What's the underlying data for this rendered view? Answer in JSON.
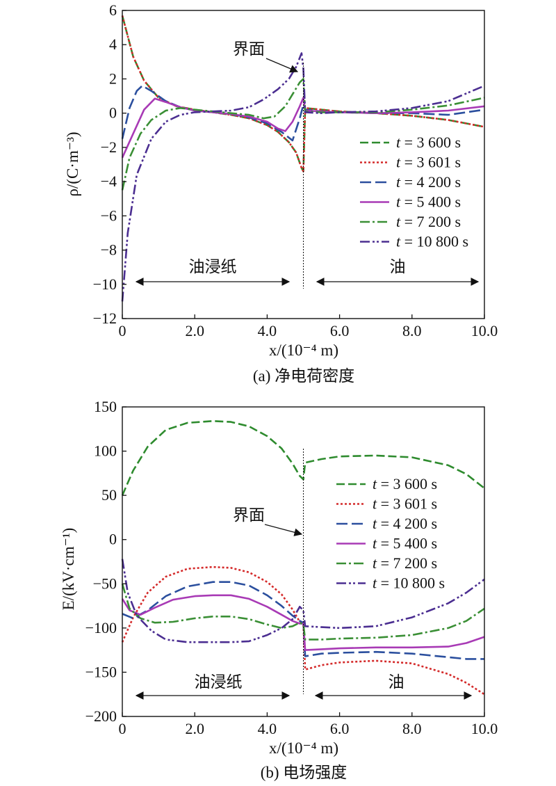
{
  "figure": {
    "caption_a": "(a) 净电荷密度",
    "caption_b": "(b) 电场强度"
  },
  "chart_data": [
    {
      "type": "line",
      "ylabel": "ρ/(C·m⁻³)",
      "xlabel": "x/(10⁻⁴ m)",
      "xlim": [
        0,
        10
      ],
      "ylim": [
        -12,
        6
      ],
      "x_ticks": [
        0,
        2,
        4,
        6,
        8,
        10
      ],
      "x_tick_labels": [
        "0",
        "2.0",
        "4.0",
        "6.0",
        "8.0",
        "10.0"
      ],
      "y_ticks": [
        -12,
        -10,
        -8,
        -6,
        -4,
        -2,
        0,
        2,
        4,
        6
      ],
      "y_tick_labels": [
        "−12",
        "−10",
        "−8",
        "−6",
        "−4",
        "−2",
        "0",
        "2",
        "4",
        "6"
      ],
      "grid": false,
      "legend_position": "right",
      "interface_x": 5.0,
      "annotations": {
        "interface": "界面",
        "region_paper": "油浸纸",
        "region_oil": "油"
      },
      "series": [
        {
          "name": "t = 3 600 s",
          "color": "#2e8b2e",
          "dash": "12,5",
          "x": [
            0,
            0.3,
            0.6,
            1.0,
            1.5,
            2.0,
            2.5,
            3.0,
            3.5,
            4.0,
            4.3,
            4.6,
            4.8,
            4.95,
            5.0,
            5.05,
            5.5,
            6.0,
            7.0,
            8.0,
            9.0,
            10.0
          ],
          "y": [
            5.7,
            3.3,
            1.9,
            0.9,
            0.4,
            0.2,
            0.05,
            -0.1,
            -0.3,
            -0.7,
            -1.1,
            -1.7,
            -2.3,
            -3.2,
            -3.4,
            0.3,
            0.2,
            0.1,
            0.0,
            -0.15,
            -0.4,
            -0.8
          ]
        },
        {
          "name": "t = 3 601 s",
          "color": "#d42a2a",
          "dash": "3,3",
          "x": [
            0,
            0.3,
            0.6,
            1.0,
            1.5,
            2.0,
            2.5,
            3.0,
            3.5,
            4.0,
            4.3,
            4.6,
            4.8,
            4.95,
            5.0,
            5.05,
            5.5,
            6.0,
            7.0,
            8.0,
            9.0,
            10.0
          ],
          "y": [
            5.7,
            3.3,
            1.9,
            0.9,
            0.4,
            0.2,
            0.05,
            -0.1,
            -0.3,
            -0.7,
            -1.1,
            -1.7,
            -2.3,
            -3.2,
            -3.4,
            0.3,
            0.2,
            0.1,
            0.0,
            -0.15,
            -0.4,
            -0.8
          ]
        },
        {
          "name": "t = 4 200 s",
          "color": "#2b4f9e",
          "dash": "16,6",
          "x": [
            0,
            0.2,
            0.4,
            0.55,
            0.8,
            1.2,
            1.6,
            2.0,
            2.5,
            3.0,
            3.5,
            4.0,
            4.4,
            4.7,
            4.9,
            5.0,
            5.05,
            5.5,
            6.0,
            7.0,
            8.0,
            9.0,
            10.0
          ],
          "y": [
            -1.5,
            0.3,
            1.3,
            1.6,
            1.3,
            0.7,
            0.35,
            0.15,
            0.05,
            -0.05,
            -0.25,
            -0.6,
            -1.1,
            -1.6,
            -0.3,
            0.5,
            0.2,
            0.1,
            0.05,
            0.0,
            0.0,
            -0.1,
            0.2
          ]
        },
        {
          "name": "t = 5 400 s",
          "color": "#a83ab5",
          "dash": "",
          "x": [
            0,
            0.3,
            0.6,
            0.9,
            1.2,
            1.6,
            2.0,
            2.5,
            3.0,
            3.5,
            4.0,
            4.3,
            4.5,
            4.7,
            4.9,
            5.0,
            5.05,
            5.5,
            6.0,
            7.0,
            8.0,
            9.0,
            10.0
          ],
          "y": [
            -2.6,
            -1.2,
            0.2,
            0.85,
            0.65,
            0.35,
            0.15,
            0.05,
            -0.05,
            -0.2,
            -0.5,
            -0.9,
            -1.05,
            -0.5,
            0.4,
            0.9,
            0.15,
            0.1,
            0.05,
            0.0,
            0.05,
            0.15,
            0.4
          ]
        },
        {
          "name": "t = 7 200 s",
          "color": "#3a8f35",
          "dash": "14,4,3,4",
          "x": [
            0,
            0.2,
            0.5,
            0.8,
            1.2,
            1.6,
            2.0,
            2.5,
            3.0,
            3.5,
            3.9,
            4.2,
            4.5,
            4.7,
            4.9,
            5.0,
            5.05,
            5.5,
            6.0,
            7.0,
            8.0,
            9.0,
            10.0
          ],
          "y": [
            -4.5,
            -2.6,
            -1.2,
            -0.4,
            0.15,
            0.3,
            0.2,
            0.1,
            0.0,
            -0.1,
            -0.3,
            -0.2,
            0.4,
            1.1,
            1.8,
            2.0,
            0.1,
            0.05,
            0.05,
            0.05,
            0.2,
            0.45,
            0.9
          ]
        },
        {
          "name": "t = 10 800 s",
          "color": "#4b2e91",
          "dash": "14,4,3,3,3,4",
          "x": [
            0,
            0.15,
            0.4,
            0.8,
            1.2,
            1.6,
            2.0,
            2.5,
            3.0,
            3.5,
            3.9,
            4.3,
            4.6,
            4.8,
            4.95,
            5.0,
            5.05,
            5.5,
            6.0,
            7.0,
            8.0,
            9.0,
            10.0
          ],
          "y": [
            -11,
            -7.0,
            -3.6,
            -1.5,
            -0.5,
            -0.1,
            0.05,
            0.1,
            0.15,
            0.35,
            0.8,
            1.4,
            2.0,
            2.7,
            3.5,
            2.6,
            0.05,
            0.0,
            0.05,
            0.1,
            0.3,
            0.7,
            1.6
          ]
        }
      ]
    },
    {
      "type": "line",
      "ylabel": "E/(kV·cm⁻¹)",
      "xlabel": "x/(10⁻⁴ m)",
      "xlim": [
        0,
        10
      ],
      "ylim": [
        -200,
        150
      ],
      "x_ticks": [
        0,
        2,
        4,
        6,
        8,
        10
      ],
      "x_tick_labels": [
        "0",
        "2.0",
        "4.0",
        "6.0",
        "8.0",
        "10.0"
      ],
      "y_ticks": [
        -200,
        -150,
        -100,
        -50,
        0,
        50,
        100,
        150
      ],
      "y_tick_labels": [
        "−200",
        "−150",
        "−100",
        "−50",
        "0",
        "50",
        "100",
        "150"
      ],
      "grid": false,
      "legend_position": "top-right",
      "interface_x": 5.0,
      "annotations": {
        "interface": "界面",
        "region_paper": "油浸纸",
        "region_oil": "油"
      },
      "series": [
        {
          "name": "t = 3 600 s",
          "color": "#2e8b2e",
          "dash": "12,5",
          "x": [
            0,
            0.3,
            0.7,
            1.2,
            1.8,
            2.5,
            3.0,
            3.5,
            4.0,
            4.4,
            4.7,
            4.9,
            5.0,
            5.05,
            5.5,
            6.0,
            7.0,
            8.0,
            9.0,
            9.5,
            10.0
          ],
          "y": [
            50,
            78,
            105,
            124,
            132,
            134,
            133,
            128,
            117,
            103,
            86,
            72,
            68,
            87,
            91,
            94,
            95,
            93,
            84,
            74,
            58
          ]
        },
        {
          "name": "t = 3 601 s",
          "color": "#d42a2a",
          "dash": "3,3",
          "x": [
            0,
            0.3,
            0.7,
            1.2,
            1.8,
            2.5,
            3.0,
            3.5,
            4.0,
            4.4,
            4.7,
            4.9,
            5.0,
            5.05,
            5.5,
            6.0,
            7.0,
            8.0,
            9.0,
            9.5,
            10.0
          ],
          "y": [
            -116,
            -88,
            -60,
            -42,
            -33,
            -31,
            -32,
            -37,
            -48,
            -62,
            -79,
            -93,
            -97,
            -147,
            -142,
            -139,
            -137,
            -140,
            -152,
            -162,
            -175
          ]
        },
        {
          "name": "t = 4 200 s",
          "color": "#2b4f9e",
          "dash": "16,6",
          "x": [
            0,
            0.3,
            0.7,
            1.2,
            1.8,
            2.5,
            3.0,
            3.5,
            4.0,
            4.4,
            4.7,
            4.9,
            5.0,
            5.05,
            5.5,
            6.0,
            7.0,
            8.0,
            9.0,
            9.5,
            10.0
          ],
          "y": [
            -84,
            -89,
            -80,
            -64,
            -53,
            -48,
            -48,
            -52,
            -63,
            -75,
            -86,
            -92,
            -94,
            -132,
            -129,
            -128,
            -127,
            -129,
            -133,
            -135,
            -135
          ]
        },
        {
          "name": "t = 5 400 s",
          "color": "#a83ab5",
          "dash": "",
          "x": [
            0,
            0.2,
            0.5,
            0.9,
            1.4,
            2.0,
            2.5,
            3.0,
            3.5,
            4.0,
            4.4,
            4.7,
            4.9,
            5.0,
            5.05,
            5.5,
            6.0,
            7.0,
            8.0,
            9.0,
            9.5,
            10.0
          ],
          "y": [
            -67,
            -80,
            -85,
            -77,
            -68,
            -64,
            -63,
            -63,
            -67,
            -76,
            -85,
            -92,
            -95,
            -95,
            -125,
            -124,
            -123,
            -122,
            -122,
            -121,
            -117,
            -110
          ]
        },
        {
          "name": "t = 7 200 s",
          "color": "#3a8f35",
          "dash": "14,4,3,4",
          "x": [
            0,
            0.2,
            0.5,
            0.9,
            1.4,
            2.0,
            2.5,
            3.0,
            3.5,
            4.0,
            4.4,
            4.7,
            4.9,
            5.0,
            5.05,
            5.5,
            6.0,
            7.0,
            8.0,
            9.0,
            9.5,
            10.0
          ],
          "y": [
            -50,
            -78,
            -89,
            -94,
            -93,
            -89,
            -87,
            -87,
            -90,
            -96,
            -100,
            -98,
            -94,
            -96,
            -113,
            -113,
            -112,
            -111,
            -108,
            -100,
            -92,
            -78
          ]
        },
        {
          "name": "t = 10 800 s",
          "color": "#4b2e91",
          "dash": "14,4,3,3,3,4",
          "x": [
            0,
            0.15,
            0.4,
            0.8,
            1.2,
            1.8,
            2.5,
            3.0,
            3.5,
            4.0,
            4.4,
            4.7,
            4.9,
            5.0,
            5.05,
            5.5,
            6.0,
            7.0,
            8.0,
            9.0,
            9.5,
            10.0
          ],
          "y": [
            -22,
            -60,
            -86,
            -103,
            -113,
            -116,
            -116,
            -116,
            -115,
            -108,
            -100,
            -90,
            -76,
            -80,
            -98,
            -99,
            -100,
            -98,
            -88,
            -72,
            -60,
            -45
          ]
        }
      ]
    }
  ]
}
